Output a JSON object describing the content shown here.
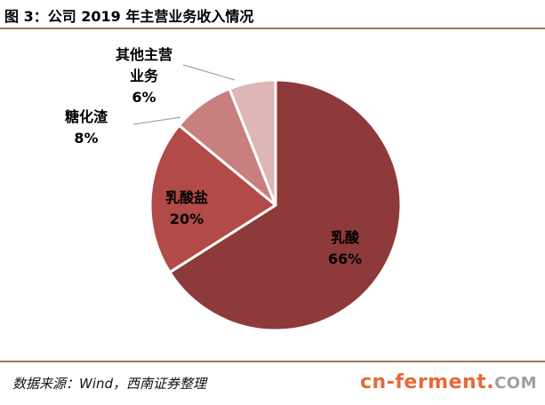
{
  "title": "图 3：公司 2019 年主营业务收入情况",
  "source": "数据来源：Wind，西南证券整理",
  "watermark": {
    "main": "cn-ferment",
    "dot": ".",
    "tld": "COM"
  },
  "colors": {
    "accent_rule": "#a07c4f",
    "watermark_main": "#e8683a",
    "watermark_tld": "#9aa0a6"
  },
  "chart_data": {
    "type": "pie",
    "title": "图 3：公司 2019 年主营业务收入情况",
    "slices": [
      {
        "label_lines": [
          "乳酸"
        ],
        "percent_label": "66%",
        "value": 66,
        "color": "#8e3a3a",
        "text_color": "#000000"
      },
      {
        "label_lines": [
          "乳酸盐"
        ],
        "percent_label": "20%",
        "value": 20,
        "color": "#b24a47",
        "text_color": "#000000"
      },
      {
        "label_lines": [
          "糖化渣"
        ],
        "percent_label": "8%",
        "value": 8,
        "color": "#c8807e",
        "text_color": "#000000"
      },
      {
        "label_lines": [
          "其他主营",
          "业务"
        ],
        "percent_label": "6%",
        "value": 6,
        "color": "#ddb6b5",
        "text_color": "#000000"
      }
    ]
  }
}
